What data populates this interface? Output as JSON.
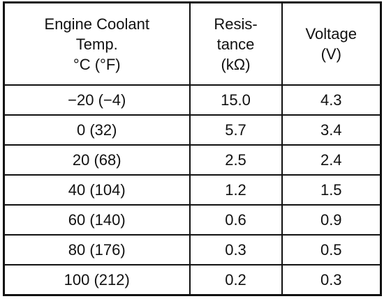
{
  "table": {
    "header": [
      [
        "Engine Coolant",
        "Temp.",
        "°C (°F)"
      ],
      [
        "Resis-",
        "tance",
        "(kΩ)"
      ],
      [
        "Voltage",
        "(V)"
      ]
    ],
    "rows": [
      [
        "−20 (−4)",
        "15.0",
        "4.3"
      ],
      [
        "0 (32)",
        "5.7",
        "3.4"
      ],
      [
        "20 (68)",
        "2.5",
        "2.4"
      ],
      [
        "40 (104)",
        "1.2",
        "1.5"
      ],
      [
        "60 (140)",
        "0.6",
        "0.9"
      ],
      [
        "80 (176)",
        "0.3",
        "0.5"
      ],
      [
        "100 (212)",
        "0.2",
        "0.3"
      ]
    ]
  }
}
